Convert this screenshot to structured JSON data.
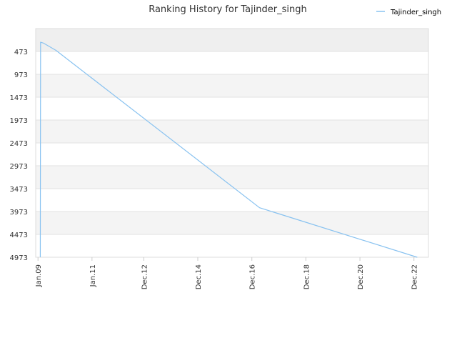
{
  "chart_data": {
    "type": "line",
    "title": "Ranking History for Tajinder_singh",
    "xlabel": "",
    "ylabel": "",
    "legend": {
      "placement": "top-right"
    },
    "grid": true,
    "y_reversed": true,
    "ylim": [
      4973,
      -27
    ],
    "xlim": [
      "2008-12-01",
      "2023-06-15"
    ],
    "y_ticks": [
      473,
      973,
      1473,
      1973,
      2473,
      2973,
      3473,
      3973,
      4473,
      4973
    ],
    "x_ticks": [
      {
        "label": "Jan.09",
        "date": "2009-01-01"
      },
      {
        "label": "Jan.11",
        "date": "2011-01-01"
      },
      {
        "label": "Dec.12",
        "date": "2012-12-01"
      },
      {
        "label": "Dec.14",
        "date": "2014-12-01"
      },
      {
        "label": "Dec.16",
        "date": "2016-12-01"
      },
      {
        "label": "Dec.18",
        "date": "2018-12-01"
      },
      {
        "label": "Dec.20",
        "date": "2020-12-01"
      },
      {
        "label": "Dec.22",
        "date": "2022-12-01"
      }
    ],
    "series": [
      {
        "name": "Tajinder_singh",
        "color": "#88c2f0",
        "points": [
          {
            "x": "2009-02-01",
            "y": 4973
          },
          {
            "x": "2009-02-05",
            "y": 270
          },
          {
            "x": "2009-03-15",
            "y": 290
          },
          {
            "x": "2009-09-01",
            "y": 450
          },
          {
            "x": "2017-03-15",
            "y": 3890
          },
          {
            "x": "2023-01-15",
            "y": 4973
          }
        ]
      }
    ]
  }
}
